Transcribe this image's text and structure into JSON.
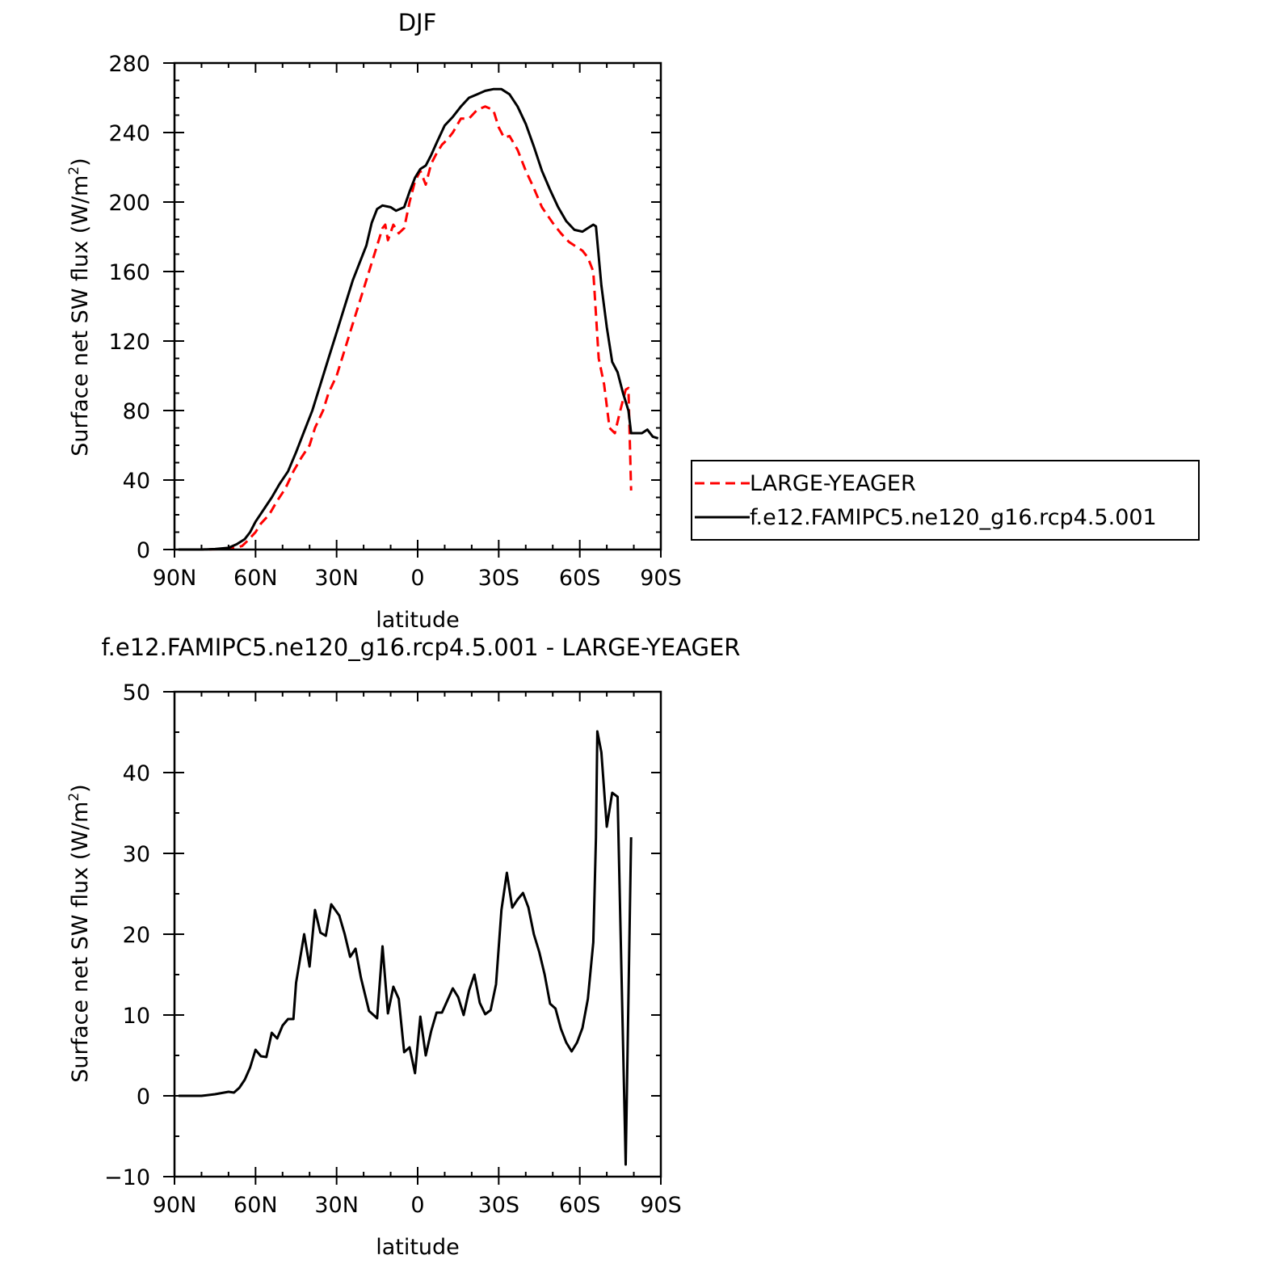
{
  "chart_data": [
    {
      "type": "line",
      "title": "DJF",
      "xlabel": "latitude",
      "ylabel": "Surface net SW flux (W/m²)",
      "ylabel_main": "Surface net SW flux (W/m",
      "ylabel_sup": "2",
      "ylabel_close": ")",
      "xlim": [
        90,
        -90
      ],
      "ylim": [
        0,
        280
      ],
      "x_ticks": [
        {
          "value": 90,
          "label": "90N"
        },
        {
          "value": 60,
          "label": "60N"
        },
        {
          "value": 30,
          "label": "30N"
        },
        {
          "value": 0,
          "label": "0"
        },
        {
          "value": -30,
          "label": "30S"
        },
        {
          "value": -60,
          "label": "60S"
        },
        {
          "value": -90,
          "label": "90S"
        }
      ],
      "y_ticks": [
        {
          "value": 0,
          "label": "0"
        },
        {
          "value": 40,
          "label": "40"
        },
        {
          "value": 80,
          "label": "80"
        },
        {
          "value": 120,
          "label": "120"
        },
        {
          "value": 160,
          "label": "160"
        },
        {
          "value": 200,
          "label": "200"
        },
        {
          "value": 240,
          "label": "240"
        },
        {
          "value": 280,
          "label": "280"
        }
      ],
      "legend": {
        "placement": "right",
        "entries": [
          {
            "label": "LARGE-YEAGER",
            "color": "#ff0000",
            "dash": true
          },
          {
            "label": "f.e12.FAMIPC5.ne120_g16.rcp4.5.001",
            "color": "#000000",
            "dash": false
          }
        ]
      },
      "series": [
        {
          "name": "LARGE-YEAGER",
          "color": "#ff0000",
          "dashed": true,
          "points": [
            [
              88.5,
              0
            ],
            [
              80,
              0
            ],
            [
              72,
              0.3
            ],
            [
              68,
              1
            ],
            [
              65,
              2
            ],
            [
              63,
              5
            ],
            [
              60,
              10
            ],
            [
              58,
              15
            ],
            [
              55,
              20
            ],
            [
              52,
              28
            ],
            [
              49,
              35
            ],
            [
              46,
              45
            ],
            [
              43,
              53
            ],
            [
              40,
              60
            ],
            [
              38,
              70
            ],
            [
              35,
              80
            ],
            [
              33,
              90
            ],
            [
              30,
              100
            ],
            [
              27,
              115
            ],
            [
              24,
              130
            ],
            [
              21,
              145
            ],
            [
              18,
              160
            ],
            [
              15,
              175
            ],
            [
              13,
              185
            ],
            [
              12,
              187
            ],
            [
              11,
              178
            ],
            [
              9,
              187
            ],
            [
              7,
              182
            ],
            [
              5,
              185
            ],
            [
              3,
              200
            ],
            [
              1,
              212
            ],
            [
              -1,
              218
            ],
            [
              -3,
              210
            ],
            [
              -5,
              222
            ],
            [
              -7,
              228
            ],
            [
              -9,
              233
            ],
            [
              -11,
              236
            ],
            [
              -13,
              240
            ],
            [
              -16,
              248
            ],
            [
              -19,
              248
            ],
            [
              -22,
              253
            ],
            [
              -25,
              255
            ],
            [
              -28,
              253
            ],
            [
              -30,
              243
            ],
            [
              -32,
              237
            ],
            [
              -34,
              238
            ],
            [
              -37,
              230
            ],
            [
              -40,
              218
            ],
            [
              -43,
              208
            ],
            [
              -46,
              197
            ],
            [
              -50,
              188
            ],
            [
              -53,
              182
            ],
            [
              -56,
              177
            ],
            [
              -59,
              174
            ],
            [
              -61,
              172
            ],
            [
              -63,
              168
            ],
            [
              -65,
              160
            ],
            [
              -67,
              110
            ],
            [
              -69,
              95
            ],
            [
              -71,
              70
            ],
            [
              -73,
              67
            ],
            [
              -75,
              80
            ],
            [
              -77,
              92
            ],
            [
              -78,
              93
            ],
            [
              -79,
              34
            ]
          ]
        },
        {
          "name": "f.e12.FAMIPC5.ne120_g16.rcp4.5.001",
          "color": "#000000",
          "dashed": false,
          "points": [
            [
              88.5,
              0
            ],
            [
              80,
              0
            ],
            [
              75,
              0.3
            ],
            [
              70,
              1
            ],
            [
              67,
              3
            ],
            [
              64,
              6
            ],
            [
              62,
              10
            ],
            [
              60,
              16
            ],
            [
              57,
              23
            ],
            [
              54,
              30
            ],
            [
              51,
              38
            ],
            [
              48,
              45
            ],
            [
              45,
              56
            ],
            [
              42,
              68
            ],
            [
              39,
              80
            ],
            [
              36,
              95
            ],
            [
              33,
              110
            ],
            [
              30,
              125
            ],
            [
              27,
              140
            ],
            [
              24,
              155
            ],
            [
              21,
              167
            ],
            [
              19,
              175
            ],
            [
              17,
              188
            ],
            [
              15,
              196
            ],
            [
              13,
              198
            ],
            [
              10,
              197
            ],
            [
              8,
              195
            ],
            [
              5,
              197
            ],
            [
              3,
              206
            ],
            [
              1,
              214
            ],
            [
              -1,
              219
            ],
            [
              -3,
              221
            ],
            [
              -5,
              227
            ],
            [
              -7,
              234
            ],
            [
              -10,
              244
            ],
            [
              -13,
              249
            ],
            [
              -16,
              255
            ],
            [
              -19,
              260
            ],
            [
              -22,
              262
            ],
            [
              -25,
              264
            ],
            [
              -28,
              265
            ],
            [
              -31,
              265
            ],
            [
              -34,
              262
            ],
            [
              -37,
              255
            ],
            [
              -40,
              245
            ],
            [
              -43,
              232
            ],
            [
              -46,
              218
            ],
            [
              -49,
              207
            ],
            [
              -52,
              197
            ],
            [
              -55,
              189
            ],
            [
              -58,
              184
            ],
            [
              -61,
              183
            ],
            [
              -63,
              185
            ],
            [
              -65,
              187
            ],
            [
              -66,
              186
            ],
            [
              -68,
              152
            ],
            [
              -70,
              128
            ],
            [
              -72,
              108
            ],
            [
              -74,
              102
            ],
            [
              -76,
              90
            ],
            [
              -78,
              80
            ],
            [
              -79,
              67
            ],
            [
              -81,
              67
            ],
            [
              -83,
              67
            ],
            [
              -85,
              69
            ],
            [
              -87,
              65
            ],
            [
              -89,
              64
            ]
          ]
        }
      ]
    },
    {
      "type": "line",
      "title": "f.e12.FAMIPC5.ne120_g16.rcp4.5.001 - LARGE-YEAGER",
      "xlabel": "latitude",
      "ylabel": "Surface net SW flux (W/m²)",
      "ylabel_main": "Surface net SW flux (W/m",
      "ylabel_sup": "2",
      "ylabel_close": ")",
      "xlim": [
        90,
        -90
      ],
      "ylim": [
        -10,
        50
      ],
      "x_ticks": [
        {
          "value": 90,
          "label": "90N"
        },
        {
          "value": 60,
          "label": "60N"
        },
        {
          "value": 30,
          "label": "30N"
        },
        {
          "value": 0,
          "label": "0"
        },
        {
          "value": -30,
          "label": "30S"
        },
        {
          "value": -60,
          "label": "60S"
        },
        {
          "value": -90,
          "label": "90S"
        }
      ],
      "y_ticks": [
        {
          "value": -10,
          "label": "−10"
        },
        {
          "value": 0,
          "label": "0"
        },
        {
          "value": 10,
          "label": "10"
        },
        {
          "value": 20,
          "label": "20"
        },
        {
          "value": 30,
          "label": "30"
        },
        {
          "value": 40,
          "label": "40"
        },
        {
          "value": 50,
          "label": "50"
        }
      ],
      "series": [
        {
          "color": "#000000",
          "dashed": false,
          "points": [
            [
              88.5,
              0
            ],
            [
              80,
              0
            ],
            [
              75,
              0.2
            ],
            [
              70,
              0.5
            ],
            [
              68,
              0.4
            ],
            [
              66,
              1
            ],
            [
              64,
              2
            ],
            [
              62,
              3.5
            ],
            [
              60,
              5.7
            ],
            [
              58,
              4.9
            ],
            [
              56,
              4.8
            ],
            [
              54,
              7.8
            ],
            [
              52,
              7.1
            ],
            [
              50,
              8.7
            ],
            [
              48,
              9.5
            ],
            [
              46,
              9.5
            ],
            [
              45,
              14
            ],
            [
              42,
              20
            ],
            [
              40,
              16
            ],
            [
              38,
              23
            ],
            [
              36,
              20.2
            ],
            [
              34,
              19.8
            ],
            [
              32,
              23.7
            ],
            [
              29,
              22.3
            ],
            [
              27,
              20
            ],
            [
              25,
              17.2
            ],
            [
              23,
              18.2
            ],
            [
              21,
              14.6
            ],
            [
              18,
              10.5
            ],
            [
              15,
              9.6
            ],
            [
              13,
              18.5
            ],
            [
              11,
              10.2
            ],
            [
              9,
              13.5
            ],
            [
              7,
              12
            ],
            [
              5,
              5.4
            ],
            [
              3,
              6
            ],
            [
              1,
              2.8
            ],
            [
              -1,
              9.8
            ],
            [
              -3,
              5
            ],
            [
              -5,
              8
            ],
            [
              -7,
              10.3
            ],
            [
              -9,
              10.3
            ],
            [
              -11,
              11.8
            ],
            [
              -13,
              13.3
            ],
            [
              -15,
              12.2
            ],
            [
              -17,
              10
            ],
            [
              -19,
              13
            ],
            [
              -21,
              15
            ],
            [
              -23,
              11.5
            ],
            [
              -25,
              10.1
            ],
            [
              -27,
              10.6
            ],
            [
              -29,
              13.8
            ],
            [
              -31,
              23
            ],
            [
              -33,
              27.6
            ],
            [
              -35,
              23.3
            ],
            [
              -37,
              24.3
            ],
            [
              -39,
              25.1
            ],
            [
              -41,
              23.3
            ],
            [
              -43,
              20
            ],
            [
              -45,
              17.8
            ],
            [
              -47,
              15
            ],
            [
              -49,
              11.4
            ],
            [
              -51,
              10.8
            ],
            [
              -53,
              8.3
            ],
            [
              -55,
              6.6
            ],
            [
              -57,
              5.5
            ],
            [
              -59,
              6.6
            ],
            [
              -61,
              8.4
            ],
            [
              -63,
              12
            ],
            [
              -65,
              19
            ],
            [
              -66,
              32
            ],
            [
              -66.5,
              45.1
            ],
            [
              -68,
              42.5
            ],
            [
              -70,
              33.3
            ],
            [
              -72,
              37.5
            ],
            [
              -74,
              37
            ],
            [
              -77,
              -8.5
            ],
            [
              -79,
              32
            ]
          ]
        }
      ]
    }
  ]
}
